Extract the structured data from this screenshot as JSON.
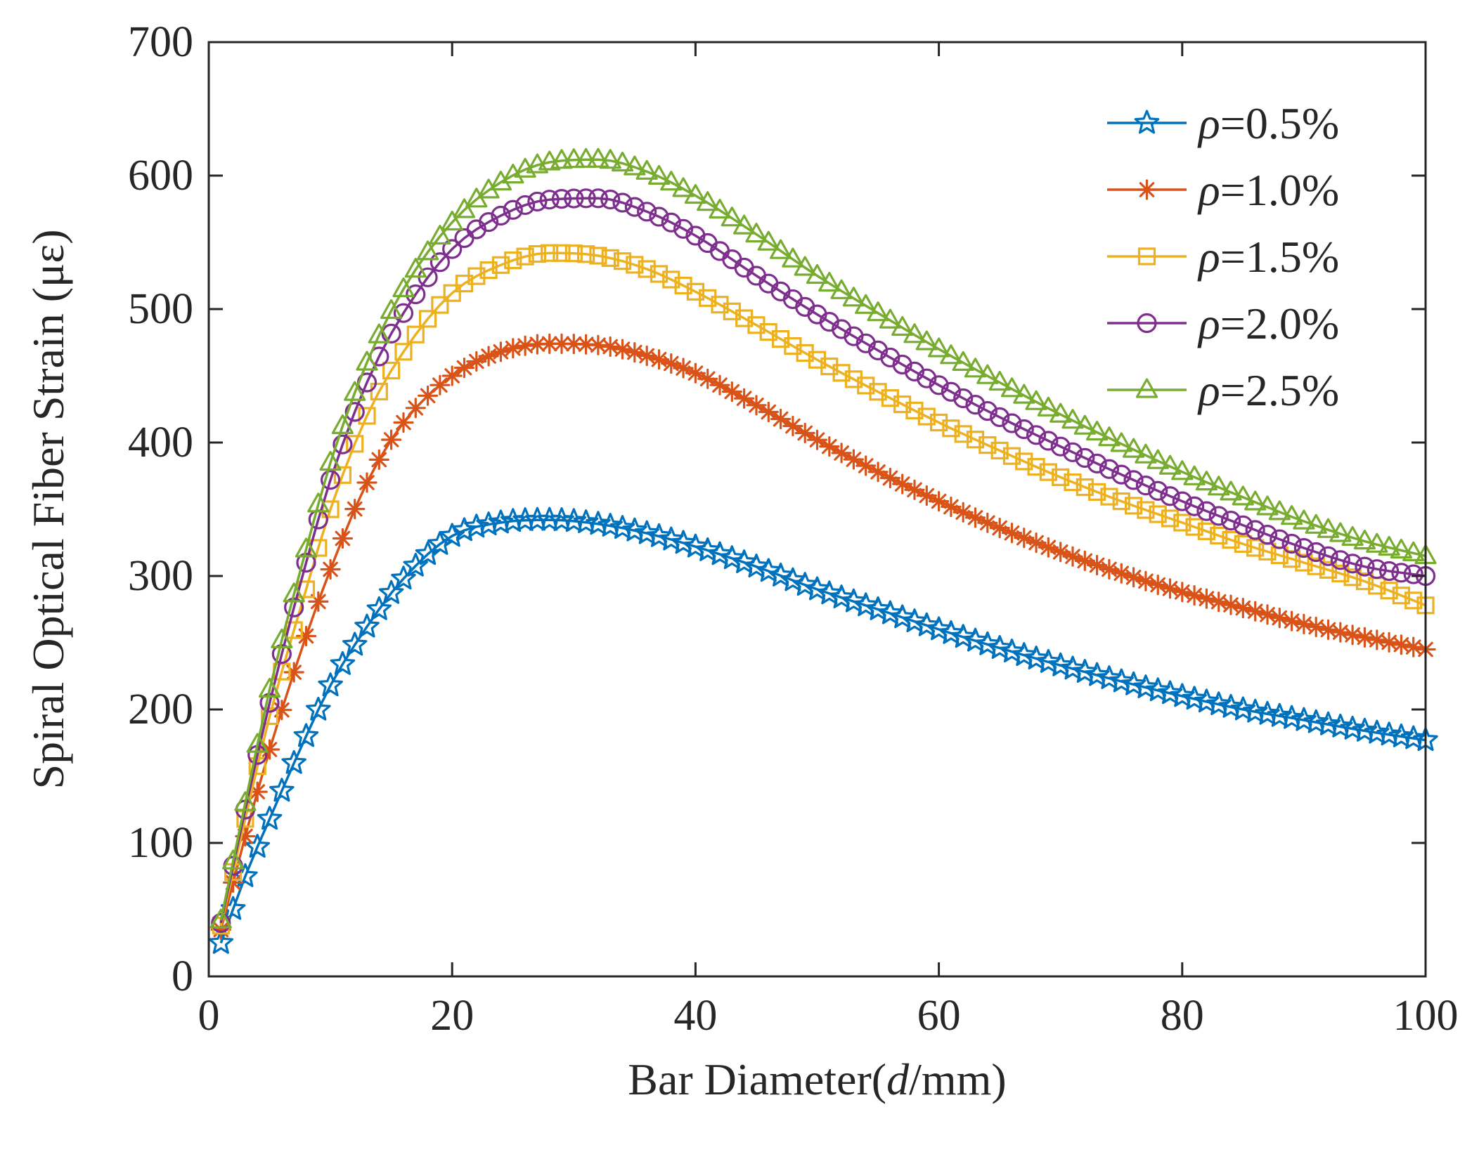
{
  "chart_data": {
    "type": "line",
    "title": "",
    "xlabel": {
      "prefix": "Bar Diameter(",
      "var": "d",
      "suffix": "/mm)"
    },
    "ylabel": "Spiral Optical Fiber Strain (με)",
    "xlim": [
      0,
      100
    ],
    "ylim": [
      0,
      700
    ],
    "xticks": [
      0,
      20,
      40,
      60,
      80,
      100
    ],
    "yticks": [
      0,
      100,
      200,
      300,
      400,
      500,
      600,
      700
    ],
    "xtick_labels": [
      "0",
      "20",
      "40",
      "60",
      "80",
      "100"
    ],
    "ytick_labels": [
      "0",
      "100",
      "200",
      "300",
      "400",
      "500",
      "600",
      "700"
    ],
    "grid": false,
    "legend_position": "top-right",
    "x_range": [
      1,
      100
    ],
    "anchors_x": [
      1,
      3,
      5,
      8,
      10,
      13,
      16,
      20,
      24,
      28,
      32,
      36,
      40,
      45,
      50,
      55,
      60,
      65,
      70,
      75,
      80,
      85,
      90,
      95,
      100
    ],
    "series": [
      {
        "name": "ρ=0.5%",
        "symbol": "ρ",
        "label": "=0.5%",
        "color": "#0072BD",
        "marker": "star",
        "anchors": [
          25,
          75,
          118,
          180,
          218,
          262,
          298,
          330,
          340,
          342,
          339,
          332,
          322,
          307,
          290,
          275,
          260,
          246,
          233,
          221,
          210,
          200,
          192,
          184,
          177
        ]
      },
      {
        "name": "ρ=1.0%",
        "symbol": "ρ",
        "label": "=1.0%",
        "color": "#D95319",
        "marker": "asterisk",
        "anchors": [
          35,
          105,
          170,
          255,
          305,
          370,
          415,
          450,
          468,
          474,
          473,
          465,
          452,
          428,
          402,
          378,
          356,
          336,
          318,
          302,
          288,
          276,
          264,
          254,
          245
        ]
      },
      {
        "name": "ρ=1.5%",
        "symbol": "ρ",
        "label": "=1.5%",
        "color": "#EDB120",
        "marker": "square",
        "anchors": [
          38,
          118,
          195,
          290,
          350,
          420,
          468,
          512,
          533,
          542,
          540,
          530,
          513,
          488,
          462,
          438,
          415,
          394,
          374,
          356,
          340,
          324,
          310,
          296,
          278
        ]
      },
      {
        "name": "ρ=2.0%",
        "symbol": "ρ",
        "label": "=2.0%",
        "color": "#7E2F8E",
        "marker": "circle",
        "anchors": [
          40,
          125,
          205,
          310,
          372,
          445,
          497,
          545,
          570,
          582,
          583,
          573,
          555,
          525,
          496,
          469,
          443,
          419,
          397,
          376,
          356,
          338,
          321,
          307,
          300
        ]
      },
      {
        "name": "ρ=2.5%",
        "symbol": "ρ",
        "label": "=2.5%",
        "color": "#77AC30",
        "marker": "triangle",
        "anchors": [
          42,
          130,
          215,
          320,
          385,
          460,
          515,
          565,
          595,
          610,
          612,
          603,
          585,
          556,
          525,
          497,
          470,
          445,
          421,
          399,
          378,
          359,
          341,
          326,
          315
        ]
      }
    ]
  }
}
